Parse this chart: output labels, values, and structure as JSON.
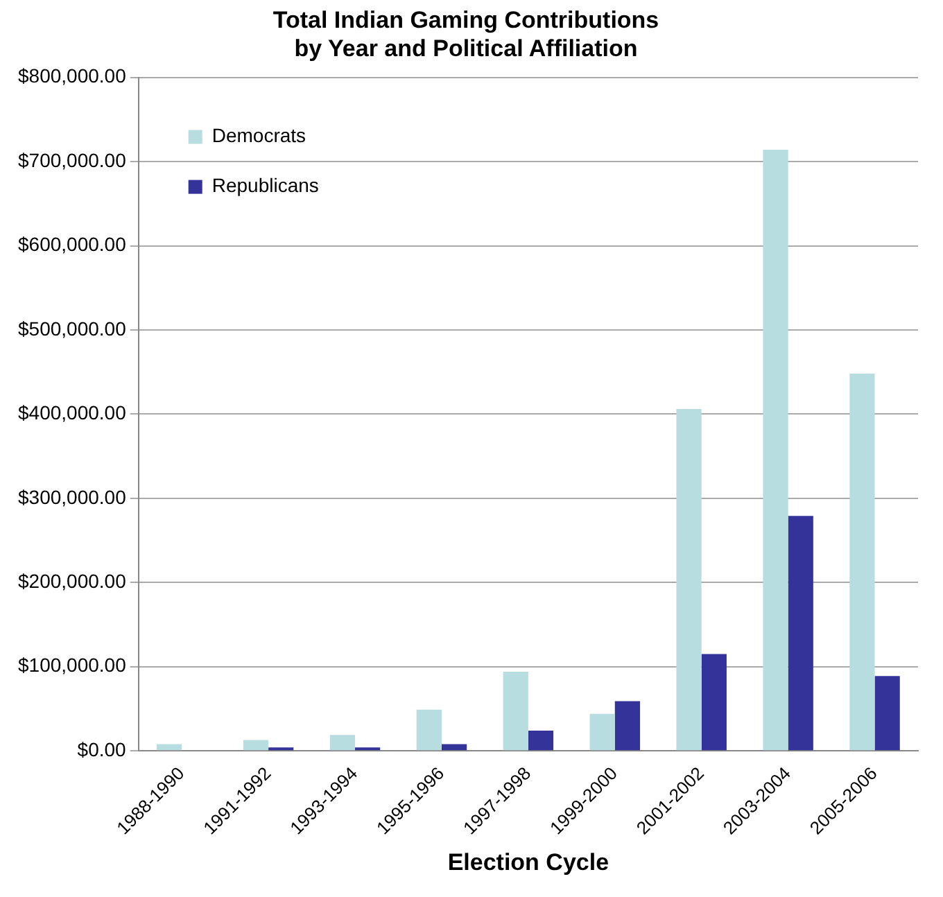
{
  "chart_data": {
    "type": "bar",
    "title": "Total Indian Gaming Contributions\nby Year and Political Affiliation",
    "xlabel": "Election Cycle",
    "categories": [
      "1988-1990",
      "1991-1992",
      "1993-1994",
      "1995-1996",
      "1997-1998",
      "1999-2000",
      "2001-2002",
      "2003-2004",
      "2005-2006"
    ],
    "series": [
      {
        "name": "Democrats",
        "color": "#b7dde1",
        "values": [
          8000,
          13000,
          19000,
          49000,
          94000,
          44000,
          406000,
          714000,
          448000
        ]
      },
      {
        "name": "Republicans",
        "color": "#333399",
        "values": [
          null,
          4000,
          4000,
          8000,
          24000,
          59000,
          115000,
          279000,
          89000
        ]
      }
    ],
    "ylim": [
      0,
      800000
    ],
    "yticks": [
      {
        "value": 0,
        "label": "$0.00"
      },
      {
        "value": 100000,
        "label": "$100,000.00"
      },
      {
        "value": 200000,
        "label": "$200,000.00"
      },
      {
        "value": 300000,
        "label": "$300,000.00"
      },
      {
        "value": 400000,
        "label": "$400,000.00"
      },
      {
        "value": 500000,
        "label": "$500,000.00"
      },
      {
        "value": 600000,
        "label": "$600,000.00"
      },
      {
        "value": 700000,
        "label": "$700,000.00"
      },
      {
        "value": 800000,
        "label": "$800,000.00"
      }
    ],
    "grid": "y",
    "legend": "top left"
  }
}
